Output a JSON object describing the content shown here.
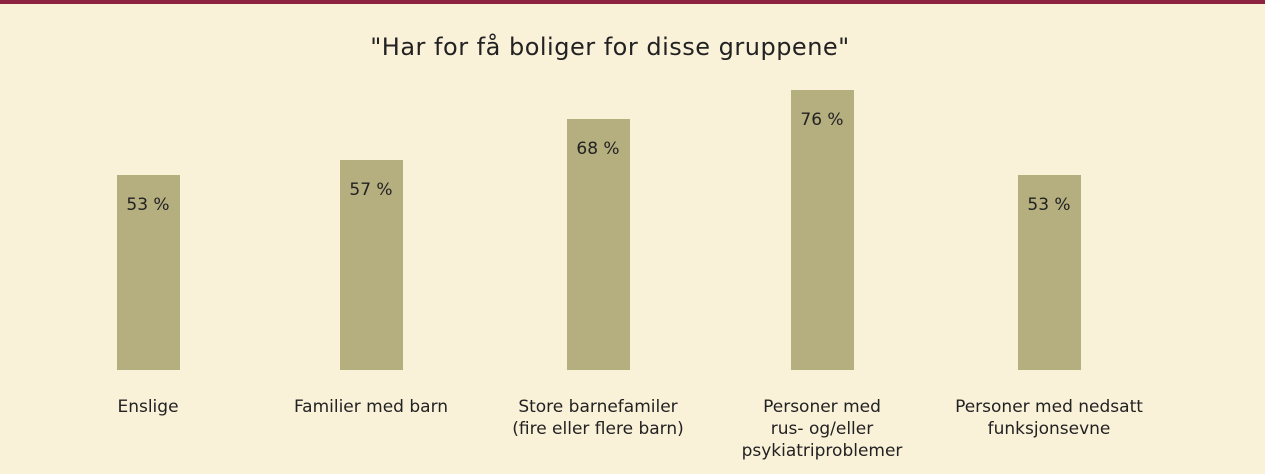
{
  "chart_data": {
    "type": "bar",
    "title": "\"Har for få boliger for disse gruppene\"",
    "categories": [
      "Enslige",
      "Familier med barn",
      "Store barnefamiler\n(fire eller flere barn)",
      "Personer med\nrus- og/eller\npsykiatriproblemer",
      "Personer med nedsatt\nfunksjonsevne"
    ],
    "values": [
      53,
      57,
      68,
      76,
      53
    ],
    "value_labels": [
      "53 %",
      "57 %",
      "68 %",
      "76 %",
      "53 %"
    ],
    "color": "#b5ae7f"
  }
}
